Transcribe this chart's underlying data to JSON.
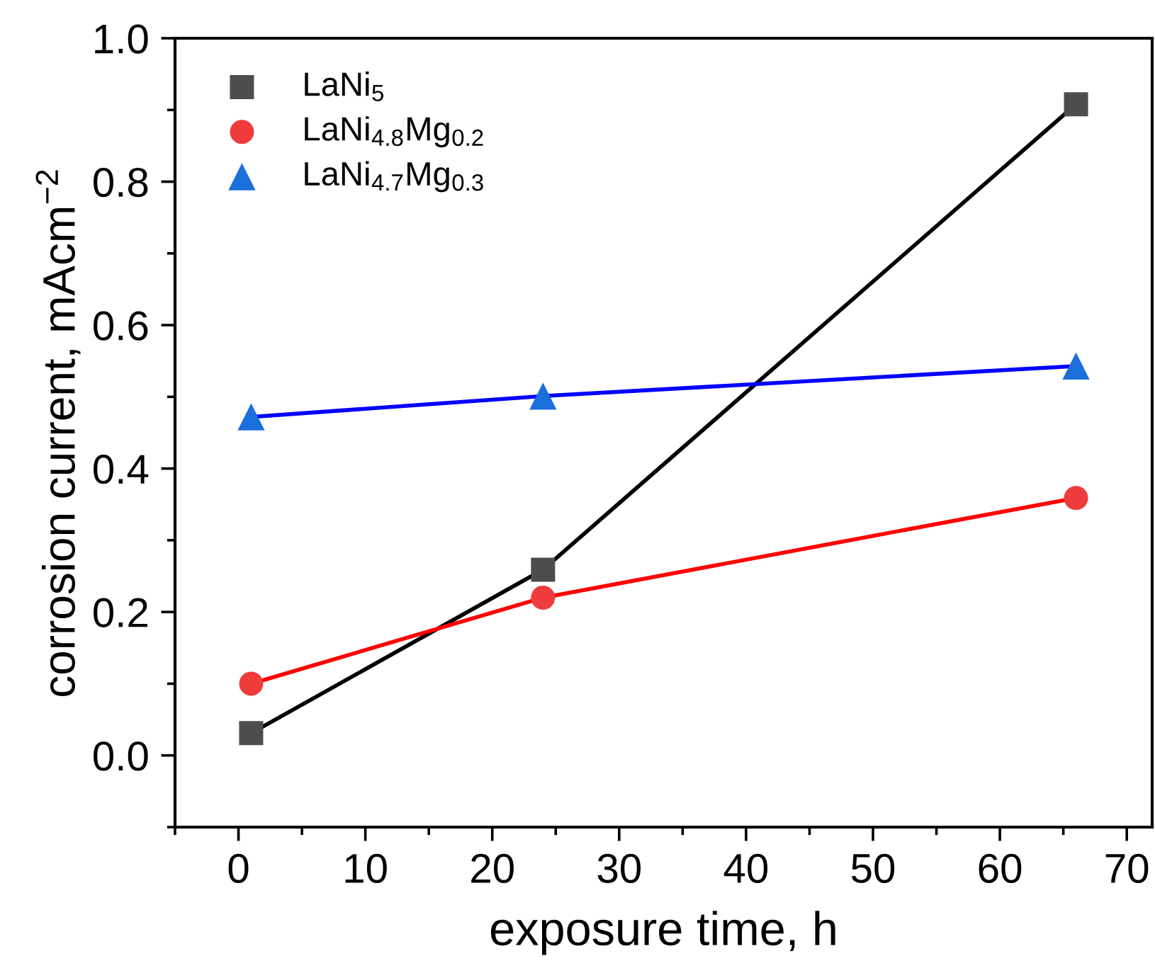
{
  "chart_data": {
    "type": "scatter",
    "xlabel": "exposure time, h",
    "ylabel": "corrosion current, mAcm$^{−2}$",
    "x": [
      1,
      24,
      66
    ],
    "xlim": [
      -5,
      72
    ],
    "xticks": [
      0,
      10,
      20,
      30,
      40,
      50,
      60,
      70
    ],
    "ylim": [
      -0.1,
      1.0
    ],
    "yticks": [
      {
        "value": 0,
        "label": "0.0"
      },
      0.2,
      0.4,
      0.6,
      0.8,
      {
        "value": 1,
        "label": "1.0"
      }
    ],
    "grid": false,
    "legend": "top left",
    "series": [
      {
        "name": "LaNi$_{5}$",
        "color": "#4d4d4d",
        "marker": "square",
        "values": [
          0.031,
          0.259,
          0.908
        ]
      },
      {
        "name": "LaNi$_{4.8}$Mg$_{0.2}$",
        "color": "#ef3b3b",
        "marker": "circle",
        "values": [
          0.1,
          0.22,
          0.359
        ]
      },
      {
        "name": "LaNi$_{4.7}$Mg$_{0.3}$",
        "color": "#1b6fdb",
        "marker": "triangle",
        "values": [
          0.472,
          0.501,
          0.543
        ]
      },
      {
        "type": "line",
        "color": "#000000",
        "line_style": "solid",
        "values": [
          0.031,
          0.259,
          0.908
        ]
      },
      {
        "type": "line",
        "color": "#ff0000",
        "line_style": "solid",
        "values": [
          0.1,
          0.22,
          0.359
        ]
      },
      {
        "type": "line",
        "color": "#0000ff",
        "line_style": "solid",
        "values": [
          0.472,
          0.501,
          0.543
        ]
      }
    ]
  }
}
